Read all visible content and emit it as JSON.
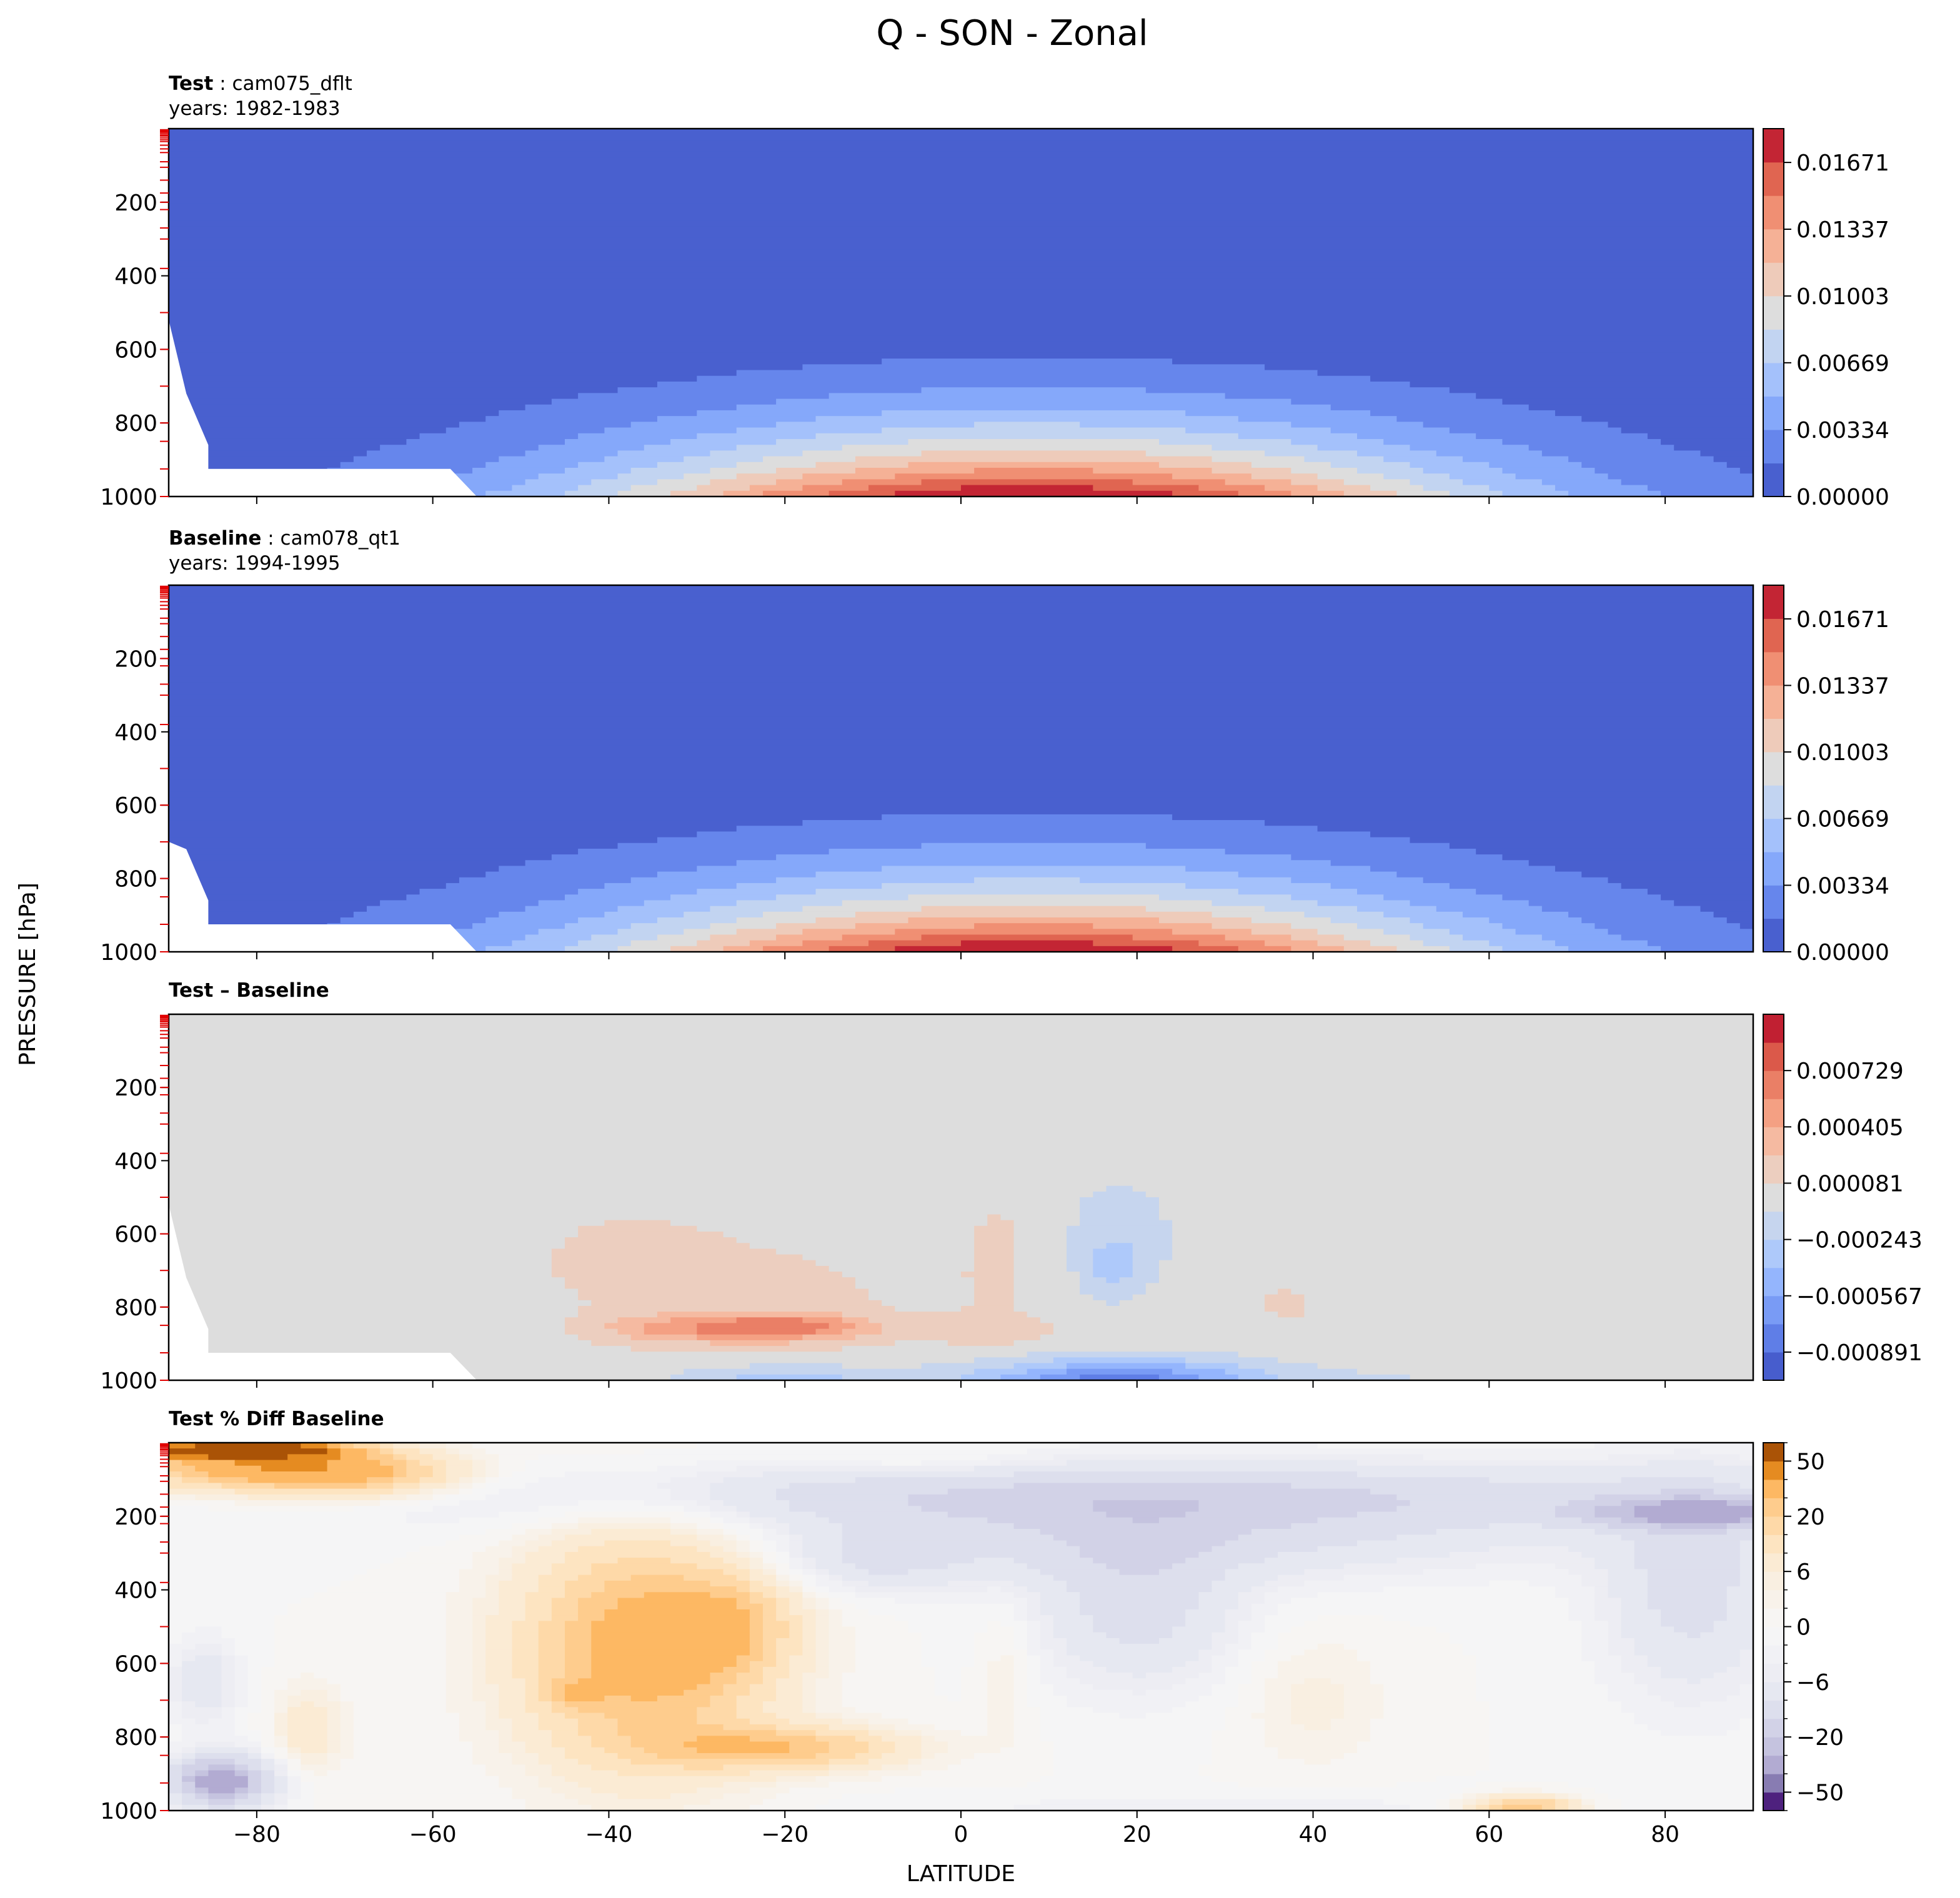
{
  "chart_data": {
    "type": "contour",
    "title": "Q - SON - Zonal",
    "xlabel": "LATITUDE",
    "ylabel": "PRESSURE [hPa]",
    "xlim": [
      -90,
      90
    ],
    "ylim": [
      1000,
      0
    ],
    "x_ticks": [
      -80,
      -60,
      -40,
      -20,
      0,
      20,
      40,
      60,
      80
    ],
    "y_ticks": [
      200,
      400,
      600,
      800,
      1000
    ],
    "model_level_ticks": [
      3,
      7,
      14,
      25,
      35,
      45,
      55,
      65,
      90,
      105,
      140,
      175,
      200,
      220,
      270,
      300,
      380,
      500,
      600,
      700,
      800,
      850,
      925,
      1000
    ],
    "panels": [
      {
        "kind": "field",
        "title_bold": "Test",
        "title_rest": ": cam075_dflt",
        "subtitle": "years: 1982-1983",
        "colormap": "coolwarm",
        "levels": 11,
        "colorbar_ticks": [
          "0.01671",
          "0.01337",
          "0.01003",
          "0.00669",
          "0.00334",
          "0.00000"
        ],
        "colorbar_range": [
          0.0,
          0.0184
        ],
        "max_value_approx": 0.0184,
        "peak_location": {
          "lat": 8,
          "pressure": 1000
        },
        "surface_mask_pressure": 925
      },
      {
        "kind": "field",
        "title_bold": "Baseline",
        "title_rest": ": cam078_qt1",
        "subtitle": "years: 1994-1995",
        "colormap": "coolwarm",
        "levels": 11,
        "colorbar_ticks": [
          "0.01671",
          "0.01337",
          "0.01003",
          "0.00669",
          "0.00334",
          "0.00000"
        ],
        "colorbar_range": [
          0.0,
          0.0184
        ],
        "max_value_approx": 0.0184,
        "peak_location": {
          "lat": 8,
          "pressure": 1000
        },
        "surface_mask_pressure": 925
      },
      {
        "kind": "diff",
        "title_bold": "Test – Baseline",
        "colormap": "coolwarm",
        "colorbar_ticks": [
          "0.000729",
          "0.000405",
          "0.000081",
          "−0.000243",
          "−0.000567",
          "−0.000891"
        ],
        "colorbar_range": [
          -0.000891,
          0.000891
        ],
        "surface_mask_pressure": 925,
        "features": [
          {
            "sign": "positive",
            "lat_range": [
              -50,
              10
            ],
            "pressure_range": [
              500,
              1000
            ],
            "peak_lat": -20,
            "peak_pressure": 850
          },
          {
            "sign": "negative",
            "lat_range": [
              12,
              27
            ],
            "pressure_range": [
              360,
              820
            ]
          },
          {
            "sign": "negative",
            "lat_range": [
              0,
              45
            ],
            "pressure_range": [
              920,
              1000
            ],
            "peak_lat": 18
          }
        ]
      },
      {
        "kind": "pct_diff",
        "title_bold": "Test % Diff Baseline",
        "colormap": "PuOr_r",
        "colorbar_ticks": [
          "50",
          "20",
          "6",
          "0",
          "−6",
          "−20",
          "−50"
        ],
        "features": [
          {
            "sign": "positive",
            "lat_range": [
              -90,
              -55
            ],
            "pressure_range": [
              0,
              200
            ]
          },
          {
            "sign": "positive",
            "lat_range": [
              -55,
              -5
            ],
            "pressure_range": [
              220,
              920
            ]
          },
          {
            "sign": "negative",
            "lat_range": [
              -60,
              90
            ],
            "pressure_range": [
              40,
              240
            ]
          },
          {
            "sign": "negative",
            "lat_range": [
              12,
              35
            ],
            "pressure_range": [
              240,
              750
            ]
          },
          {
            "sign": "negative",
            "lat_range": [
              -88,
              -78
            ],
            "pressure_range": [
              820,
              980
            ]
          }
        ]
      }
    ]
  }
}
